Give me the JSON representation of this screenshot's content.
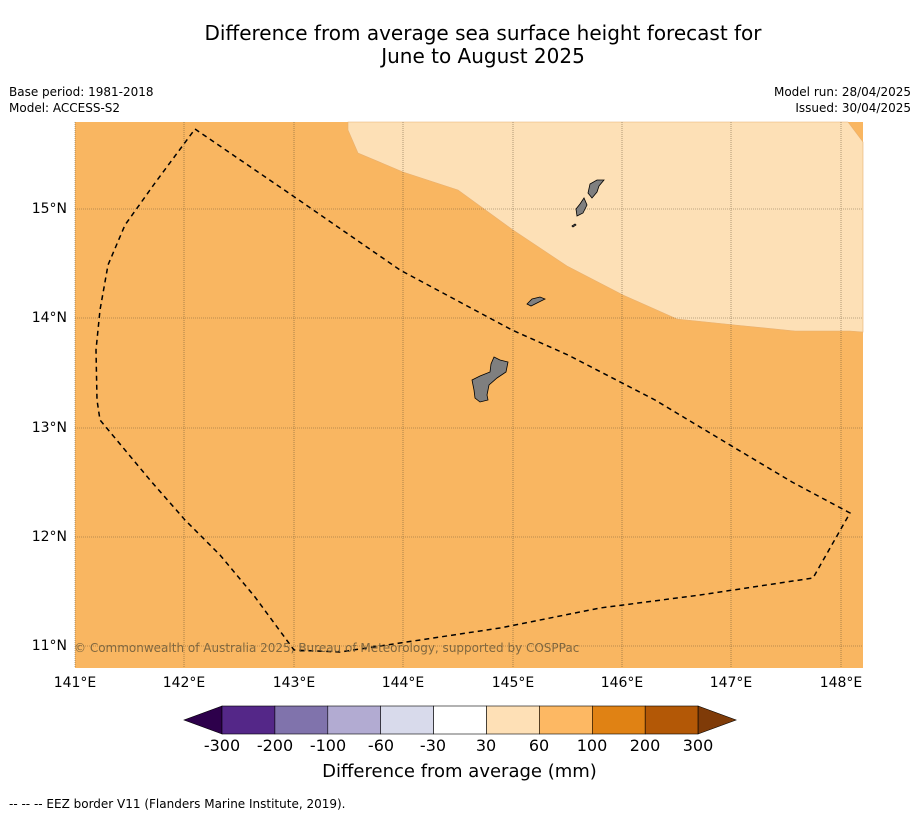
{
  "title_line1": "Difference from average sea surface height forecast for",
  "title_line2": "June to August 2025",
  "meta": {
    "base_period": "Base period: 1981-2018",
    "model": "Model: ACCESS-S2",
    "model_run": "Model run: 28/04/2025",
    "issued": "Issued: 30/04/2025"
  },
  "map": {
    "lon_ticks": [
      "141°E",
      "142°E",
      "143°E",
      "144°E",
      "145°E",
      "146°E",
      "147°E",
      "148°E"
    ],
    "lat_ticks": [
      "15°N",
      "14°N",
      "13°N",
      "12°N",
      "11°N"
    ],
    "copyright": "© Commonwealth of Australia 2025, Bureau of Meteorology, supported by COSPPac",
    "colors": {
      "band_30_60": "#fde0b6",
      "band_60_100": "#f9b661",
      "land": "#7f7f7f"
    }
  },
  "colorbar": {
    "labels": [
      "-300",
      "-200",
      "-100",
      "-60",
      "-30",
      "30",
      "60",
      "100",
      "200",
      "300"
    ],
    "colors": [
      "#2d004b",
      "#542788",
      "#8073ac",
      "#b2abd2",
      "#d8daeb",
      "#ffffff",
      "#fee0b6",
      "#fdb863",
      "#e08214",
      "#b35806",
      "#7f3b08"
    ],
    "title": "Difference from average (mm)"
  },
  "footnote": "--  --  -- EEZ border V11 (Flanders Marine Institute, 2019)."
}
